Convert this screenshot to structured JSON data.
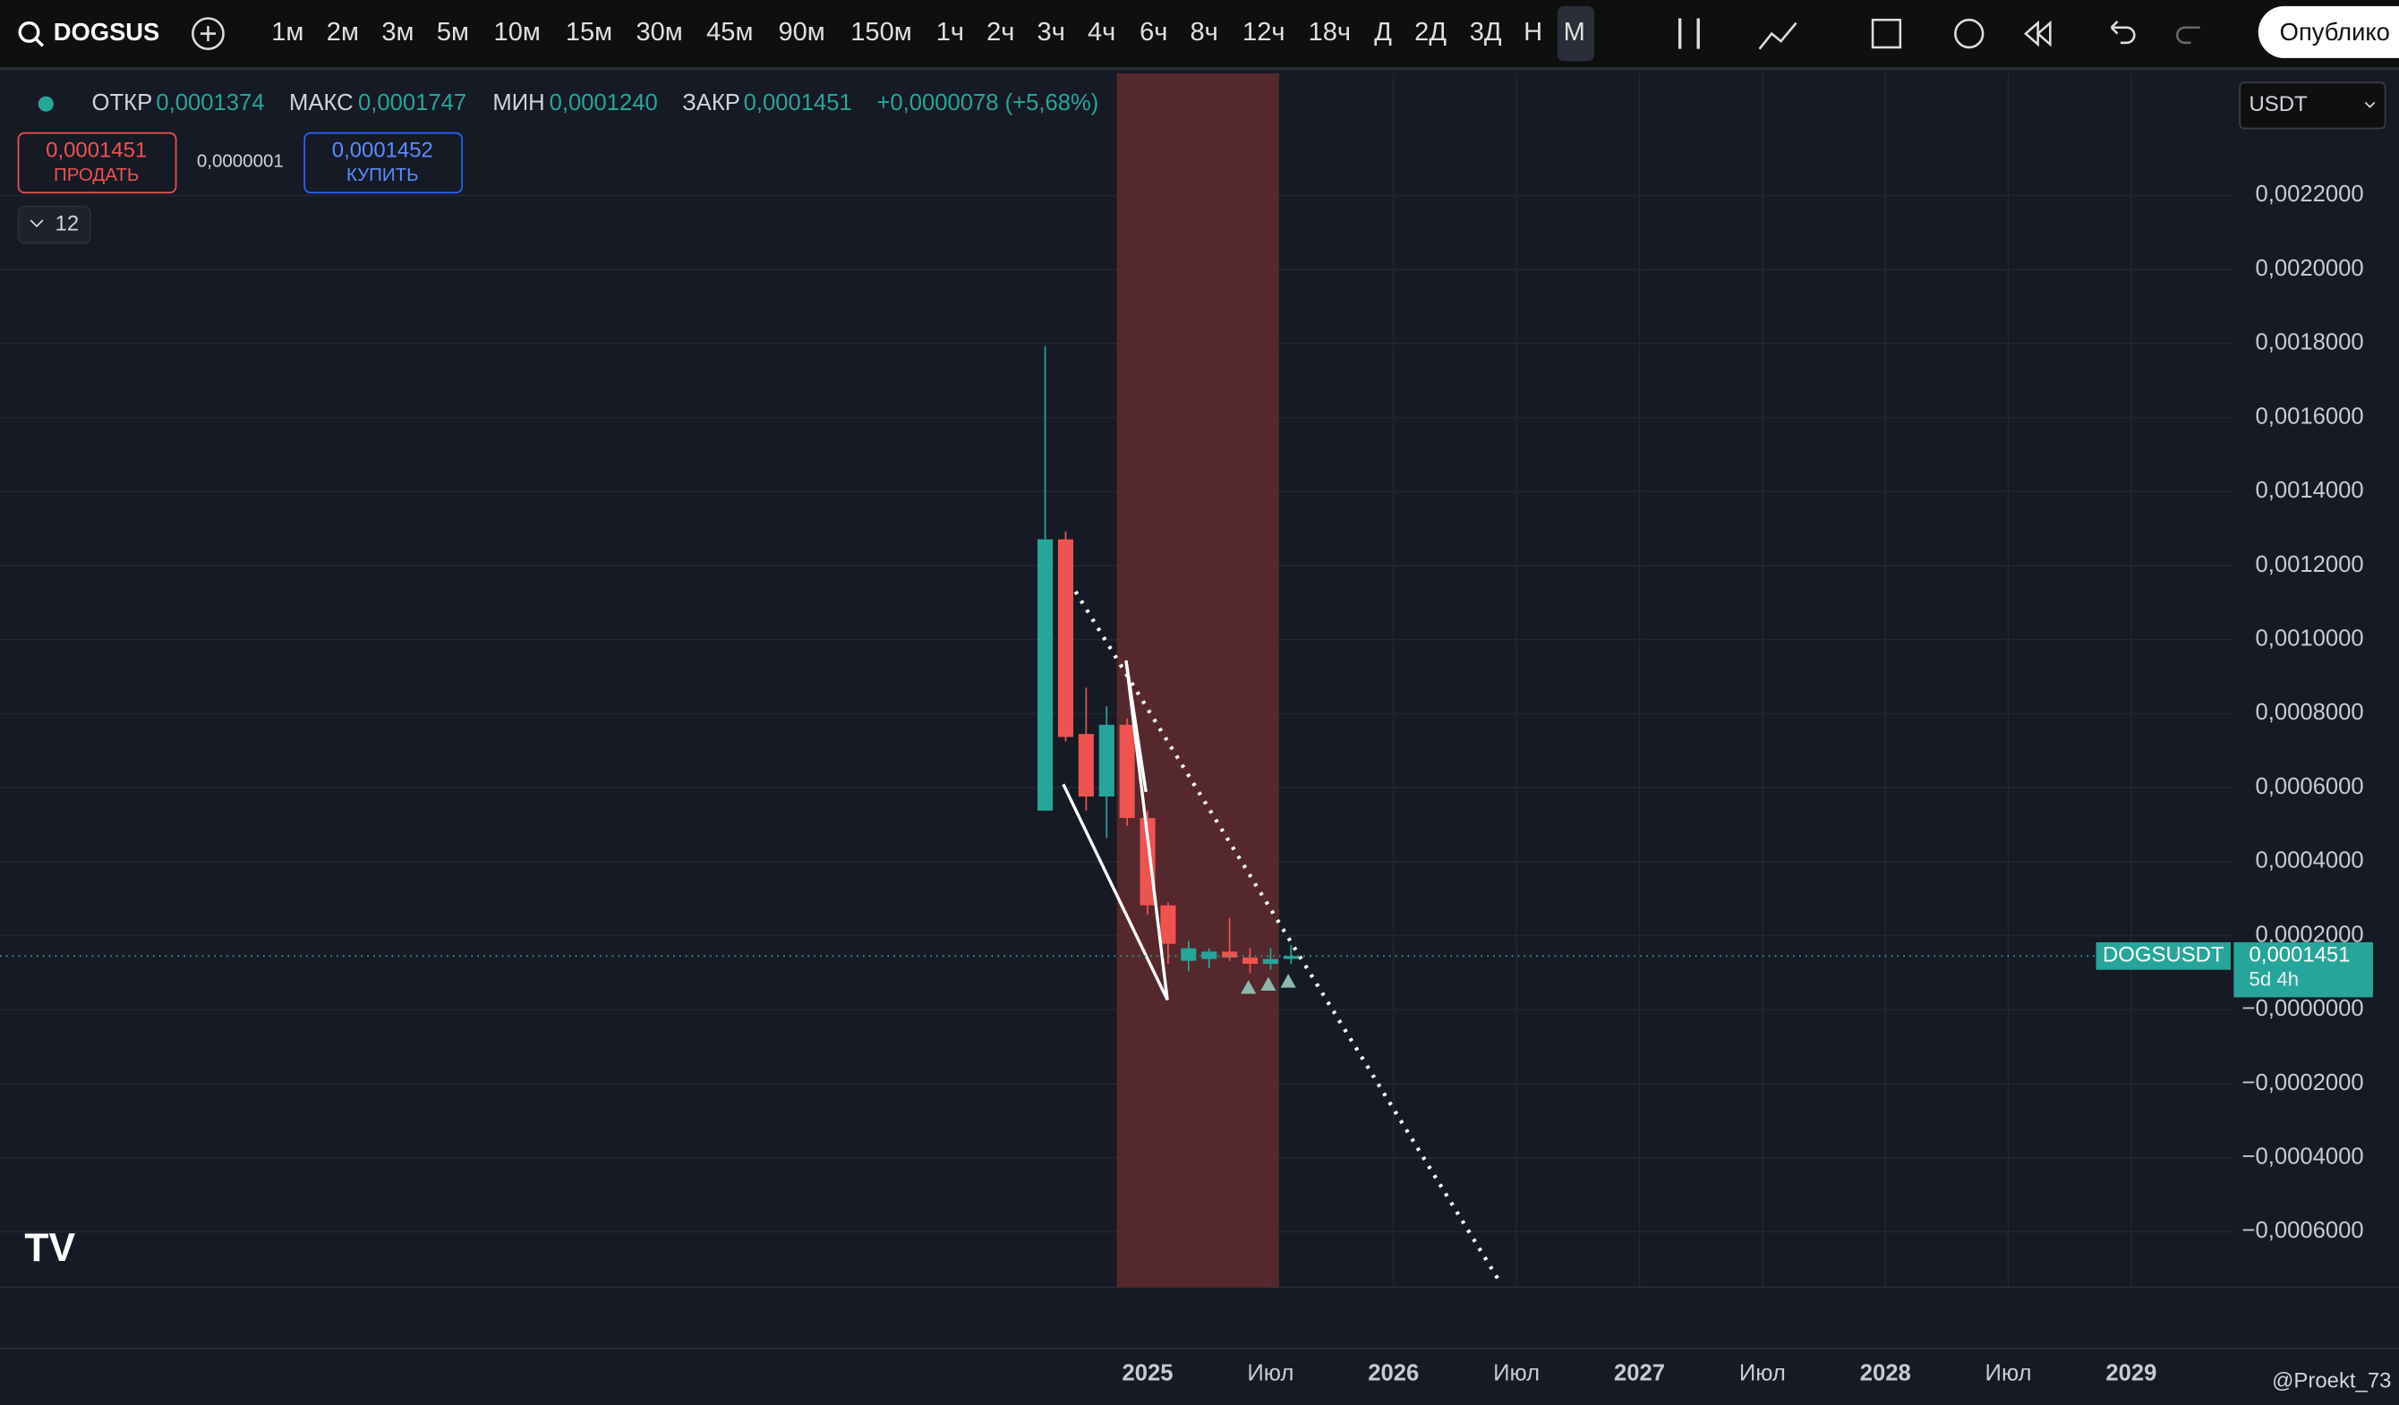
{
  "toolbar": {
    "symbol": "DOGSUS",
    "timeframes": [
      "1м",
      "2м",
      "3м",
      "5м",
      "10м",
      "15м",
      "30м",
      "45м",
      "90м",
      "150м",
      "1ч",
      "2ч",
      "3ч",
      "4ч",
      "6ч",
      "8ч",
      "12ч",
      "18ч",
      "Д",
      "2Д",
      "3Д",
      "Н",
      "М"
    ],
    "publish": "Опублико"
  },
  "legend": {
    "open_label": "ОТКР",
    "open": "0,0001374",
    "high_label": "МАКС",
    "high": "0,0001747",
    "low_label": "МИН",
    "low": "0,0001240",
    "close_label": "ЗАКР",
    "close": "0,0001451",
    "change": "+0,0000078 (+5,68%)"
  },
  "trade": {
    "sell_price": "0,0001451",
    "sell_label": "ПРОДАТЬ",
    "spread": "0,0000001",
    "buy_price": "0,0001452",
    "buy_label": "КУПИТЬ"
  },
  "indicators": "12",
  "currency": "USDT",
  "watermark": "@Proekt_73",
  "chart_data": {
    "type": "candlestick",
    "x": [
      "2024-08",
      "2024-09",
      "2024-10",
      "2024-11",
      "2024-12",
      "2025-01",
      "2025-02",
      "2025-03",
      "2025-04",
      "2025-05",
      "2025-06",
      "2025-07",
      "2025-08"
    ],
    "series": [
      {
        "name": "DOGSUSDT",
        "up_color": "#26a69a",
        "down_color": "#ef5350",
        "open": [
          0.000538,
          0.001271,
          0.000745,
          0.000576,
          0.00077,
          0.000518,
          0.000282,
          0.000132,
          0.000137,
          0.000157,
          0.000141,
          0.000124,
          0.0001374
        ],
        "high": [
          0.001793,
          0.001292,
          0.00087,
          0.00082,
          0.000787,
          0.000538,
          0.00029,
          0.000186,
          0.000166,
          0.000248,
          0.000166,
          0.000166,
          0.0001747
        ],
        "low": [
          0.000538,
          0.000725,
          0.000538,
          0.000464,
          0.000497,
          0.000257,
          0.000124,
          0.000104,
          0.000112,
          0.000132,
          9.9e-05,
          0.000108,
          0.000124
        ],
        "close": [
          0.001271,
          0.000737,
          0.000576,
          0.00077,
          0.000518,
          0.000282,
          0.000178,
          0.000166,
          0.000157,
          0.000141,
          0.000124,
          0.000137,
          0.0001451
        ]
      }
    ],
    "last_price": "0,0001451",
    "countdown": "5d 4h",
    "xlim": [
      "2020-05",
      "2029-06"
    ],
    "xticks": [
      {
        "value": "2025-01",
        "label": "2025"
      },
      {
        "value": "2025-07",
        "label": "Июл"
      },
      {
        "value": "2026-01",
        "label": "2026"
      },
      {
        "value": "2026-07",
        "label": "Июл"
      },
      {
        "value": "2027-01",
        "label": "2027"
      },
      {
        "value": "2027-07",
        "label": "Июл"
      },
      {
        "value": "2028-01",
        "label": "2028"
      },
      {
        "value": "2028-07",
        "label": "Июл"
      },
      {
        "value": "2029-01",
        "label": "2029"
      }
    ],
    "ylim": [
      -0.00075,
      0.00253
    ],
    "yticks": [
      {
        "value": 0.0022,
        "label": "0,0022000"
      },
      {
        "value": 0.002,
        "label": "0,0020000"
      },
      {
        "value": 0.0018,
        "label": "0,0018000"
      },
      {
        "value": 0.0016,
        "label": "0,0016000"
      },
      {
        "value": 0.0014,
        "label": "0,0014000"
      },
      {
        "value": 0.0012,
        "label": "0,0012000"
      },
      {
        "value": 0.001,
        "label": "0,0010000"
      },
      {
        "value": 0.0008,
        "label": "0,0008000"
      },
      {
        "value": 0.0006,
        "label": "0,0006000"
      },
      {
        "value": 0.0004,
        "label": "0,0004000"
      },
      {
        "value": 0.0002,
        "label": "0,0002000"
      },
      {
        "value": 0,
        "label": "−0,0000000"
      },
      {
        "value": -0.0002,
        "label": "−0,0002000"
      },
      {
        "value": -0.0004,
        "label": "−0,0004000"
      },
      {
        "value": -0.0006,
        "label": "−0,0006000"
      }
    ],
    "grid": true
  }
}
